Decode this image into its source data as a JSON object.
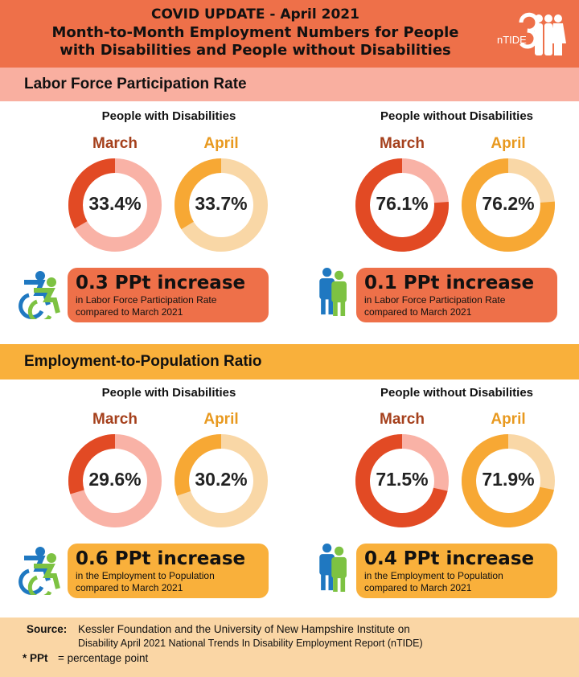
{
  "header": {
    "line1": "COVID UPDATE - April 2021",
    "line2": "Month-to-Month Employment Numbers for People",
    "line3": "with Disabilities and People without Disabilities",
    "logo_text": "nTIDE"
  },
  "colors": {
    "header": "#ee7049",
    "lfpr_band": "#f9afa0",
    "epr_band": "#f9b03b",
    "footer": "#fad6a5",
    "march_dark": "#e24a24",
    "march_light": "#f9b2a6",
    "april_dark": "#f7a834",
    "april_light": "#f9d7a6"
  },
  "sections": [
    {
      "title": "Labor Force Participation Rate",
      "groups": [
        {
          "label": "People with Disabilities",
          "march_label": "March",
          "april_label": "April",
          "march": "33.4%",
          "april": "33.7%",
          "change": "0.3 PPt increase",
          "note1": "in Labor Force Participation Rate",
          "note2": "compared to March 2021",
          "icon": "accessible-wheelchair-icon"
        },
        {
          "label": "People without Disabilities",
          "march_label": "March",
          "april_label": "April",
          "march": "76.1%",
          "april": "76.2%",
          "change": "0.1 PPt increase",
          "note1": "in Labor Force Participation Rate",
          "note2": "compared to March 2021",
          "icon": "two-people-icon"
        }
      ]
    },
    {
      "title": "Employment-to-Population Ratio",
      "groups": [
        {
          "label": "People with Disabilities",
          "march_label": "March",
          "april_label": "April",
          "march": "29.6%",
          "april": "30.2%",
          "change": "0.6 PPt increase",
          "note1": "in the Employment to Population",
          "note2": "compared to March 2021",
          "icon": "accessible-wheelchair-icon"
        },
        {
          "label": "People without Disabilities",
          "march_label": "March",
          "april_label": "April",
          "march": "71.5%",
          "april": "71.9%",
          "change": "0.4 PPt increase",
          "note1": "in the Employment to Population",
          "note2": "compared to March 2021",
          "icon": "two-people-icon"
        }
      ]
    }
  ],
  "chart_data": [
    {
      "type": "pie",
      "title": "Labor Force Participation Rate - People with Disabilities",
      "categories": [
        "March",
        "April"
      ],
      "values": [
        33.4,
        33.7
      ],
      "unit": "%"
    },
    {
      "type": "pie",
      "title": "Labor Force Participation Rate - People without Disabilities",
      "categories": [
        "March",
        "April"
      ],
      "values": [
        76.1,
        76.2
      ],
      "unit": "%"
    },
    {
      "type": "pie",
      "title": "Employment-to-Population Ratio - People with Disabilities",
      "categories": [
        "March",
        "April"
      ],
      "values": [
        29.6,
        30.2
      ],
      "unit": "%"
    },
    {
      "type": "pie",
      "title": "Employment-to-Population Ratio - People without Disabilities",
      "categories": [
        "March",
        "April"
      ],
      "values": [
        71.5,
        71.9
      ],
      "unit": "%"
    }
  ],
  "footer": {
    "source_label": "Source:",
    "source_line1": "Kessler Foundation and the University of New Hampshire Institute on",
    "source_line2": "Disability April 2021 National Trends In Disability Employment Report (nTIDE)",
    "ppt_label": "* PPt",
    "ppt_def": "= percentage point"
  }
}
